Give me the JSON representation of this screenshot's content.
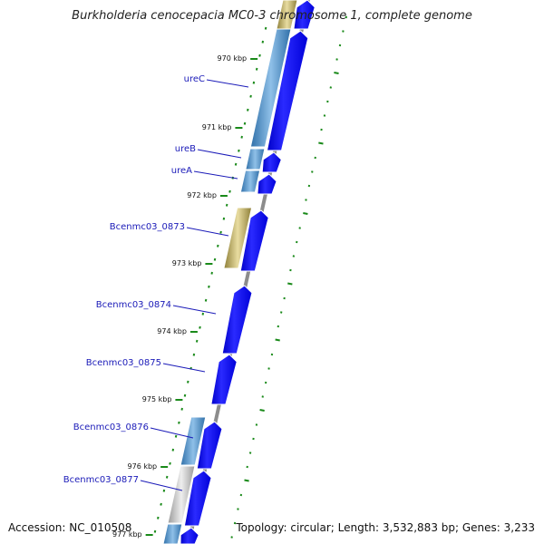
{
  "title": "Burkholderia cenocepacia MC0-3 chromosome 1, complete genome",
  "footer": {
    "accession": "Accession: NC_010508",
    "summary": "Topology: circular; Length: 3,532,883 bp; Genes: 3,233"
  },
  "colors": {
    "gene_label": "#1a1ab8",
    "forward_arrow": "#0000ee",
    "cds_blue": "#3f7fb8",
    "cds_olive": "#b7a85a",
    "cds_gray": "#b8b8b8",
    "tick": "#1a8a1a",
    "backbone": "#8c8c8c"
  },
  "ticks": [
    {
      "label": "970 kbp"
    },
    {
      "label": "971 kbp"
    },
    {
      "label": "972 kbp"
    },
    {
      "label": "973 kbp"
    },
    {
      "label": "974 kbp"
    },
    {
      "label": "975 kbp"
    },
    {
      "label": "976 kbp"
    },
    {
      "label": "977 kbp"
    }
  ],
  "genes": [
    {
      "name": "ureC"
    },
    {
      "name": "ureB"
    },
    {
      "name": "ureA"
    },
    {
      "name": "Bcenmc03_0873"
    },
    {
      "name": "Bcenmc03_0874"
    },
    {
      "name": "Bcenmc03_0875"
    },
    {
      "name": "Bcenmc03_0876"
    },
    {
      "name": "Bcenmc03_0877"
    }
  ]
}
